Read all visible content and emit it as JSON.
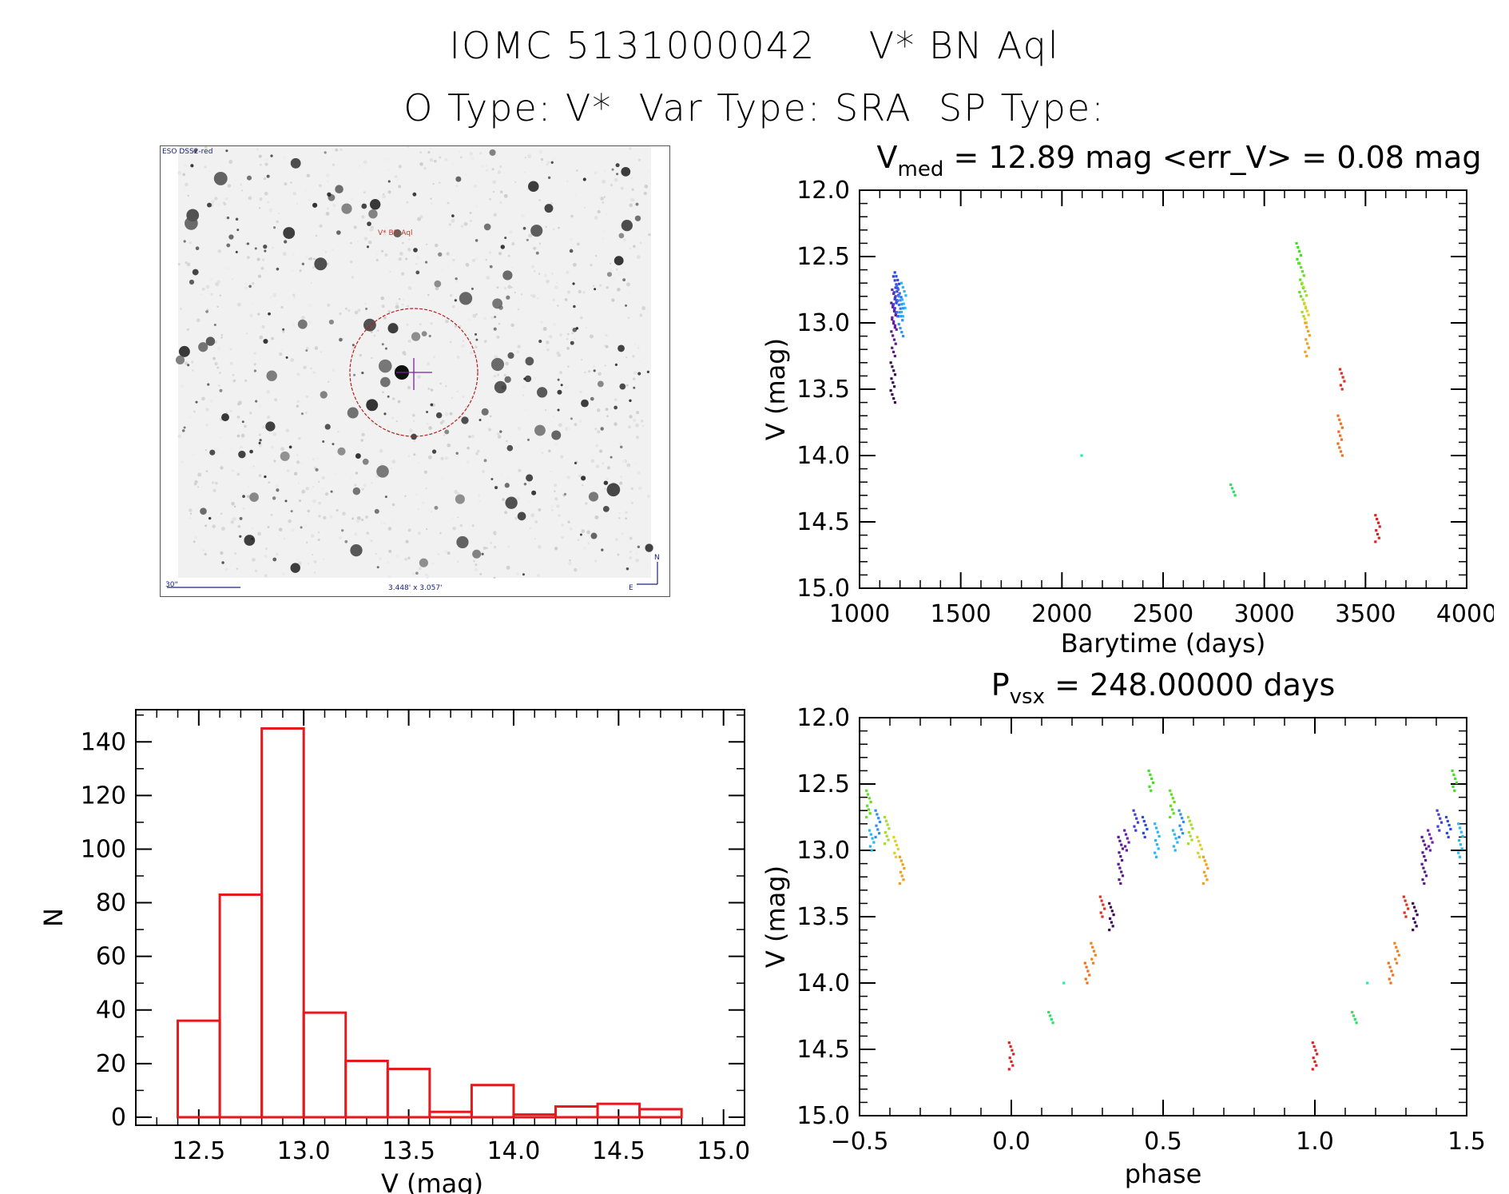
{
  "header": {
    "title_line1": "IOMC 5131000042    V* BN Aql",
    "title_line2": "O Type: V*  Var Type: SRA  SP Type:"
  },
  "finder_chart": {
    "survey_label": "ESO DSS2-red",
    "target_label": "V* BN Aql",
    "scale_label": "30\"",
    "fov_label": "3.448' x 3.057'",
    "north_label": "N",
    "east_label": "E",
    "colors": {
      "target_label": "#c0392b",
      "circle": "#b71c1c",
      "marker": "#7b1fa2",
      "annotation": "#1a237e"
    }
  },
  "chart_data": [
    {
      "id": "light-curve",
      "type": "scatter",
      "title_base": "V",
      "title_sub": "med",
      "title_rest": " =  12.89 mag <err_V> =  0.08 mag",
      "xlabel": "Barytime (days)",
      "ylabel": "V (mag)",
      "xlim": [
        1000,
        4000
      ],
      "ylim": [
        12.0,
        15.0
      ],
      "y_inverted": true,
      "xticks": [
        1000,
        1500,
        2000,
        2500,
        3000,
        3500,
        4000
      ],
      "yticks": [
        12.0,
        12.5,
        13.0,
        13.5,
        14.0,
        14.5,
        15.0
      ],
      "colormap": "rainbow (violet → red by date)",
      "clusters": [
        {
          "x": 1165,
          "y_min": 13.3,
          "y_max": 13.6,
          "color": "#3a0a5a"
        },
        {
          "x": 1168,
          "y_min": 12.85,
          "y_max": 13.25,
          "color": "#5b1a8a"
        },
        {
          "x": 1172,
          "y_min": 12.75,
          "y_max": 13.05,
          "color": "#6a1fb0"
        },
        {
          "x": 1178,
          "y_min": 12.65,
          "y_max": 12.95,
          "color": "#3f3fd0"
        },
        {
          "x": 1185,
          "y_min": 12.62,
          "y_max": 12.85,
          "color": "#2a4ae0"
        },
        {
          "x": 1195,
          "y_min": 12.72,
          "y_max": 12.95,
          "color": "#3c6cf0"
        },
        {
          "x": 1205,
          "y_min": 12.8,
          "y_max": 13.1,
          "color": "#2f90f0"
        },
        {
          "x": 1218,
          "y_min": 12.7,
          "y_max": 12.95,
          "color": "#27b8f0"
        },
        {
          "x": 2108,
          "y_min": 14.0,
          "y_max": 14.0,
          "color": "#20f0a0"
        },
        {
          "x": 2845,
          "y_min": 14.22,
          "y_max": 14.3,
          "color": "#30e060"
        },
        {
          "x": 3170,
          "y_min": 12.4,
          "y_max": 12.55,
          "color": "#40e020"
        },
        {
          "x": 3185,
          "y_min": 12.55,
          "y_max": 12.8,
          "color": "#60e020"
        },
        {
          "x": 3198,
          "y_min": 12.7,
          "y_max": 12.95,
          "color": "#a0e020"
        },
        {
          "x": 3208,
          "y_min": 12.85,
          "y_max": 13.0,
          "color": "#e0d020"
        },
        {
          "x": 3213,
          "y_min": 13.0,
          "y_max": 13.25,
          "color": "#f0a020"
        },
        {
          "x": 3375,
          "y_min": 13.7,
          "y_max": 14.0,
          "color": "#f07020"
        },
        {
          "x": 3385,
          "y_min": 13.35,
          "y_max": 13.5,
          "color": "#e03020"
        },
        {
          "x": 3560,
          "y_min": 14.45,
          "y_max": 14.65,
          "color": "#e02020"
        }
      ]
    },
    {
      "id": "phase-curve",
      "type": "scatter",
      "title_base": "P",
      "title_sub": "vsx",
      "title_rest": " =  248.00000 days",
      "xlabel": "phase",
      "ylabel": "V (mag)",
      "xlim": [
        -0.5,
        1.5
      ],
      "ylim": [
        12.0,
        15.0
      ],
      "y_inverted": true,
      "xticks": [
        -0.5,
        0.0,
        0.5,
        1.0,
        1.5
      ],
      "xtick_labels": [
        "−0.5",
        "0.0",
        "0.5",
        "1.0",
        "1.5"
      ],
      "yticks": [
        12.0,
        12.5,
        13.0,
        13.5,
        14.0,
        14.5,
        15.0
      ],
      "clusters": [
        {
          "x": 0.0,
          "y_min": 14.45,
          "y_max": 14.65,
          "color": "#e02020"
        },
        {
          "x": 0.13,
          "y_min": 14.22,
          "y_max": 14.3,
          "color": "#30e060"
        },
        {
          "x": 0.18,
          "y_min": 14.0,
          "y_max": 14.0,
          "color": "#20f0a0"
        },
        {
          "x": 0.25,
          "y_min": 13.85,
          "y_max": 14.0,
          "color": "#f07020"
        },
        {
          "x": 0.27,
          "y_min": 13.7,
          "y_max": 13.85,
          "color": "#f08020"
        },
        {
          "x": 0.3,
          "y_min": 13.35,
          "y_max": 13.5,
          "color": "#e03020"
        },
        {
          "x": 0.33,
          "y_min": 13.4,
          "y_max": 13.6,
          "color": "#3a0a5a"
        },
        {
          "x": 0.36,
          "y_min": 12.9,
          "y_max": 13.25,
          "color": "#5b1a8a"
        },
        {
          "x": 0.38,
          "y_min": 12.85,
          "y_max": 13.0,
          "color": "#6a1fb0"
        },
        {
          "x": 0.41,
          "y_min": 12.7,
          "y_max": 12.85,
          "color": "#3f3fd0"
        },
        {
          "x": 0.44,
          "y_min": 12.75,
          "y_max": 12.9,
          "color": "#2a4ae0"
        },
        {
          "x": 0.46,
          "y_min": 12.4,
          "y_max": 12.55,
          "color": "#40e020"
        },
        {
          "x": 0.48,
          "y_min": 12.8,
          "y_max": 13.05,
          "color": "#27b8f0"
        },
        {
          "x": 0.53,
          "y_min": 12.55,
          "y_max": 12.75,
          "color": "#60e020"
        },
        {
          "x": 0.54,
          "y_min": 12.85,
          "y_max": 13.0,
          "color": "#27b8f0"
        },
        {
          "x": 0.56,
          "y_min": 12.7,
          "y_max": 12.9,
          "color": "#2f90f0"
        },
        {
          "x": 0.59,
          "y_min": 12.75,
          "y_max": 12.95,
          "color": "#a0e020"
        },
        {
          "x": 0.62,
          "y_min": 12.9,
          "y_max": 13.05,
          "color": "#e0d020"
        },
        {
          "x": 0.64,
          "y_min": 13.05,
          "y_max": 13.25,
          "color": "#f0a020"
        }
      ],
      "repeat_shifts": [
        -1,
        1
      ],
      "repeat_note": "each cluster is also drawn at phase-1 and phase+1 when within range"
    },
    {
      "id": "histogram",
      "type": "bar",
      "xlabel": "V (mag)",
      "ylabel": "N",
      "xlim": [
        12.2,
        15.1
      ],
      "ylim": [
        -3,
        152
      ],
      "xticks": [
        12.5,
        13.0,
        13.5,
        14.0,
        14.5,
        15.0
      ],
      "yticks": [
        0,
        20,
        40,
        60,
        80,
        100,
        120,
        140
      ],
      "bin_width": 0.2,
      "bin_edges_start": [
        12.4,
        12.6,
        12.8,
        13.0,
        13.2,
        13.4,
        13.6,
        13.8,
        14.0,
        14.2,
        14.4,
        14.6
      ],
      "counts": [
        36,
        83,
        145,
        39,
        21,
        18,
        2,
        12,
        1,
        4,
        5,
        3
      ],
      "bar_color": "#e41a1c"
    }
  ]
}
